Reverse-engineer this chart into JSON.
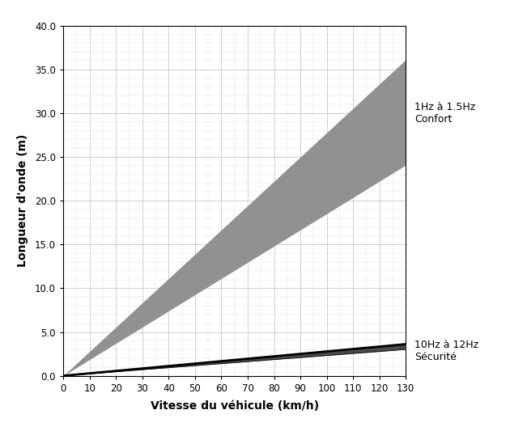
{
  "xlabel": "Vitesse du véhicule (km/h)",
  "ylabel": "Longueur d'onde (m)",
  "xlim": [
    0,
    130
  ],
  "ylim": [
    0,
    40
  ],
  "xticks": [
    0,
    10,
    20,
    30,
    40,
    50,
    60,
    70,
    80,
    90,
    100,
    110,
    120,
    130
  ],
  "yticks": [
    0.0,
    5.0,
    10.0,
    15.0,
    20.0,
    25.0,
    30.0,
    35.0,
    40.0
  ],
  "comfort_freq_low": 1.0,
  "comfort_freq_high": 1.5,
  "safety_freq_low": 10.0,
  "safety_freq_high": 12.0,
  "fill_comfort_color": "#919191",
  "fill_safety_color": "#4a4a4a",
  "line_color": "#000000",
  "bg_color": "#ffffff",
  "grid_major_color": "#c8c8c8",
  "grid_minor_color": "#e2e2e2",
  "annotation_comfort": "1Hz à 1.5Hz\nConfort",
  "annotation_safety": "10Hz à 12Hz\nSécurité",
  "fontsize_labels": 10,
  "fontsize_ticks": 8.5,
  "fontsize_annotations": 9
}
